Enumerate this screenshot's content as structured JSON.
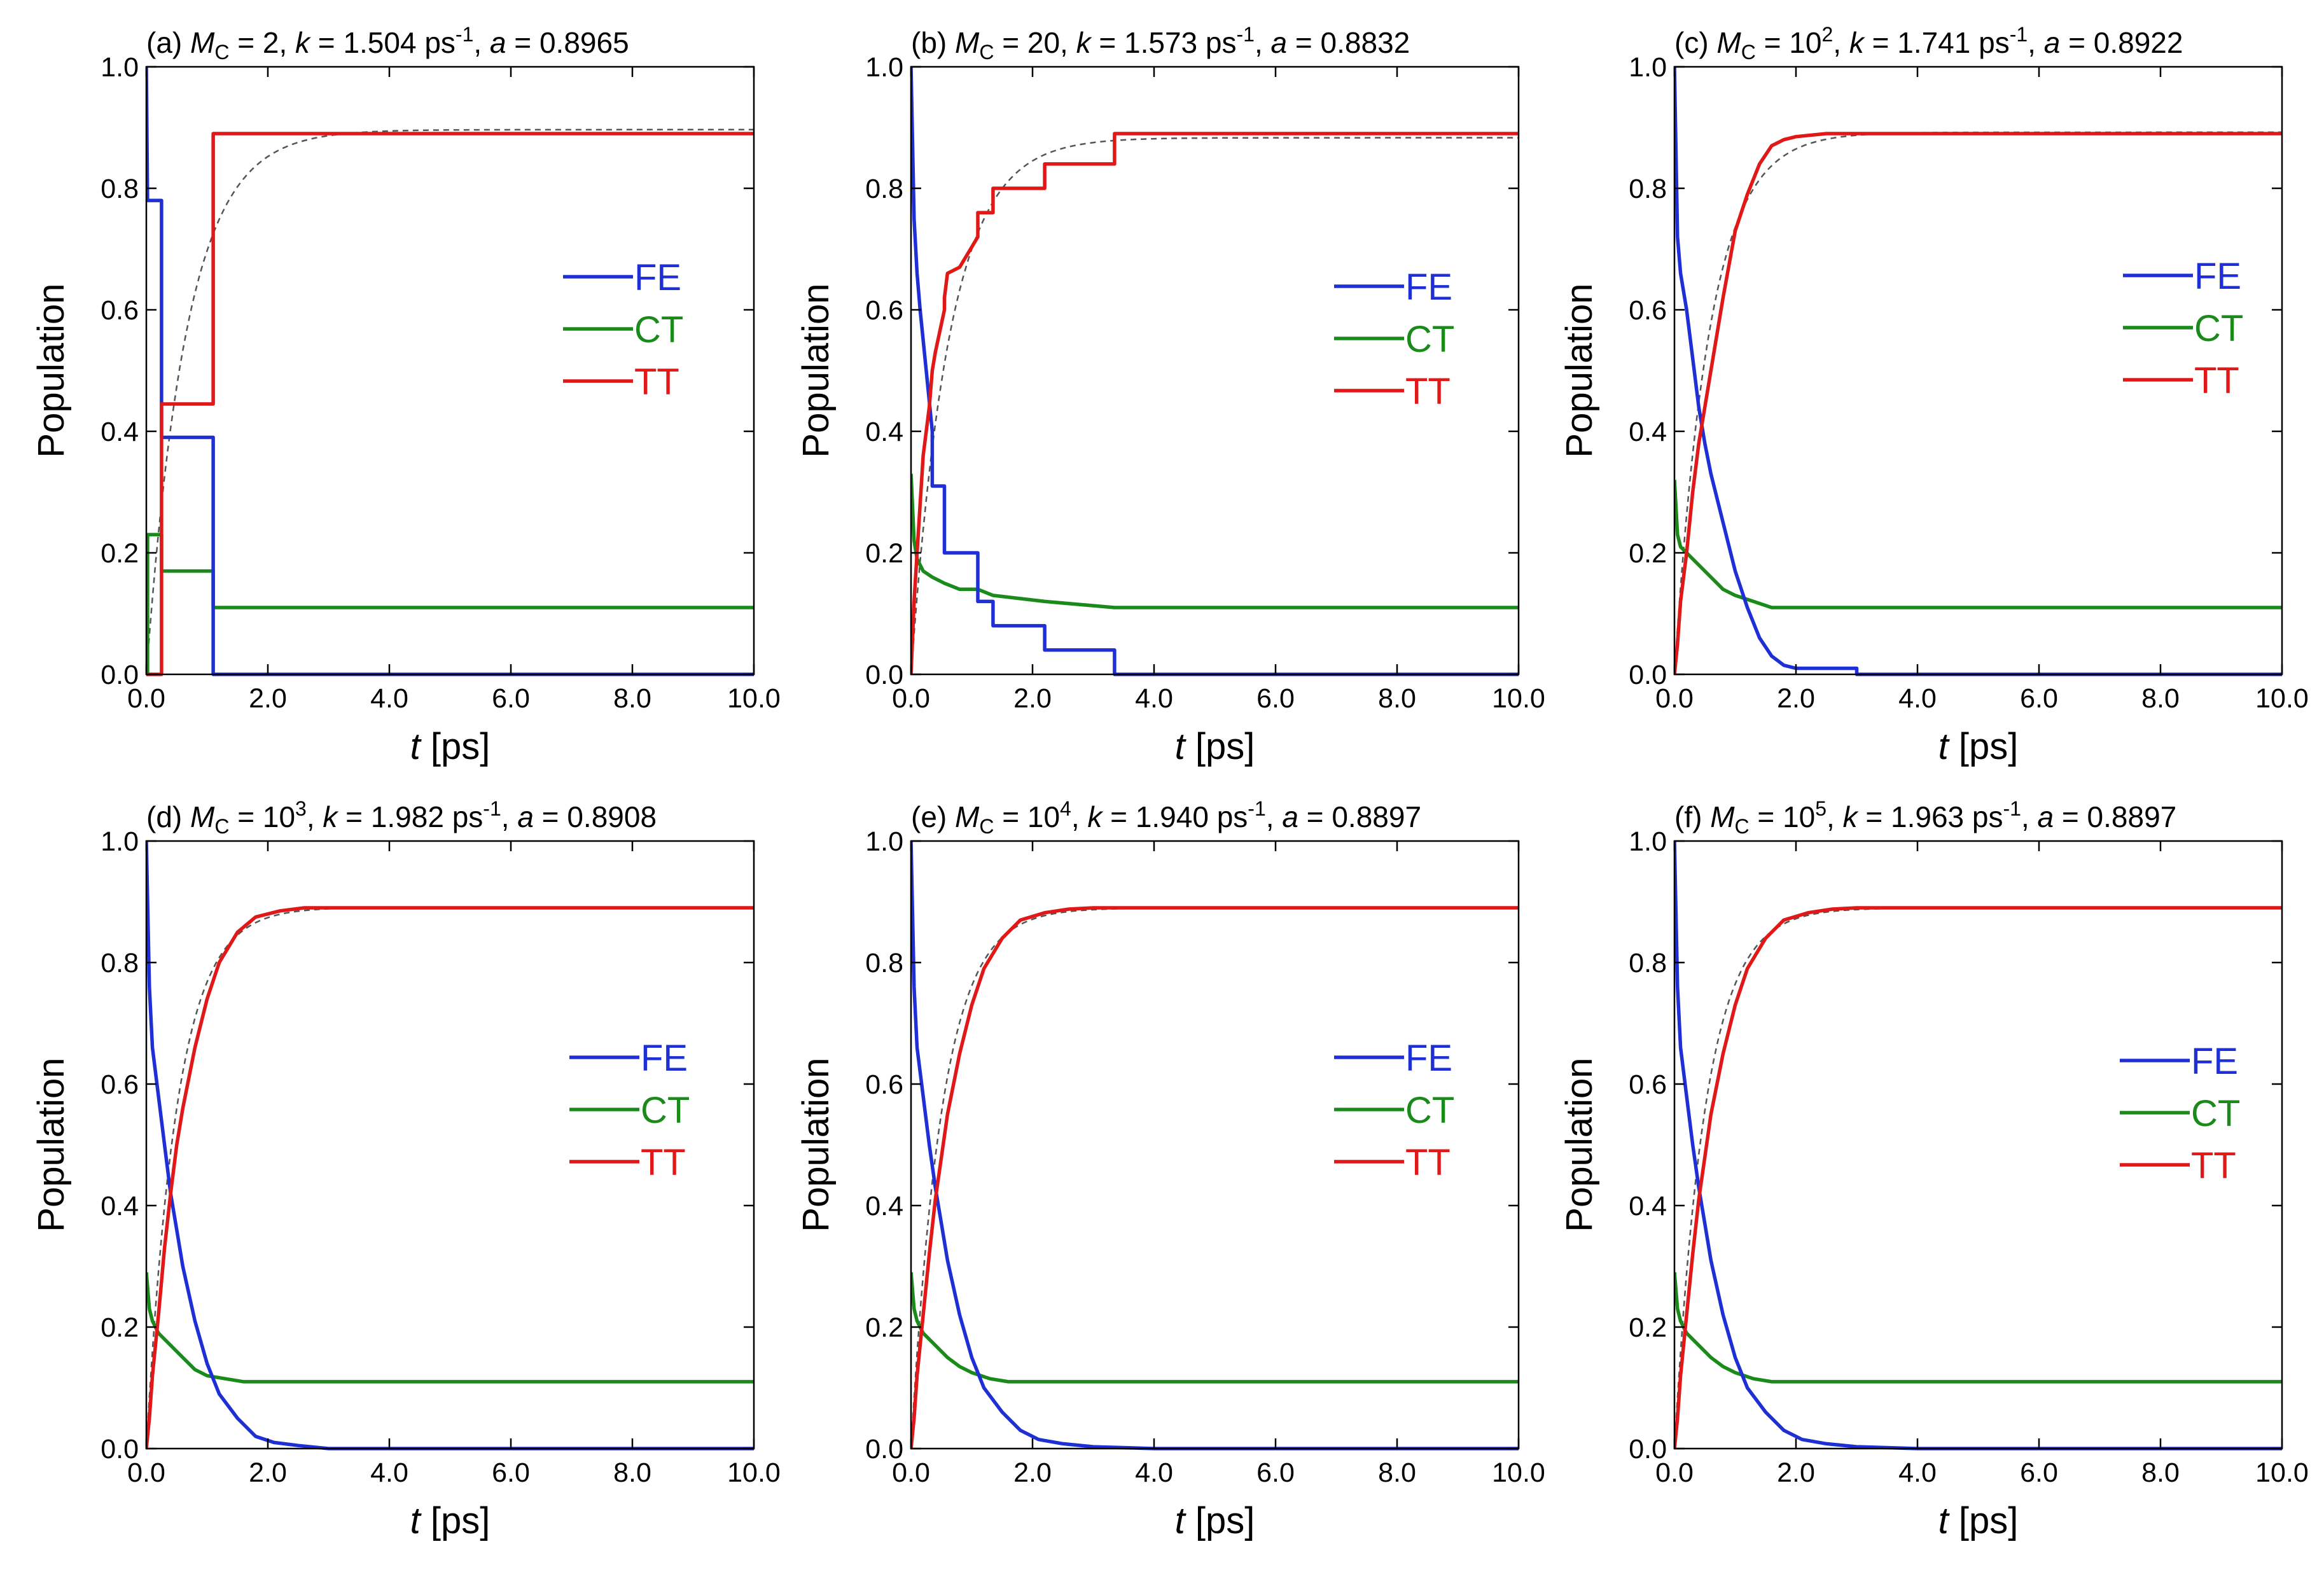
{
  "chart_data": [
    {
      "type": "line",
      "title": "(a) MC = 2, k = 1.504 ps-1,  a = 0.8965",
      "title_parts": {
        "tag": "(a)",
        "mc": "2",
        "mc_exp": "",
        "k": "1.504",
        "a": "0.8965"
      },
      "xlabel": {
        "var": "t",
        "unit": "[ps]"
      },
      "ylabel": "Population",
      "xlim": [
        0,
        10
      ],
      "ylim": [
        0,
        1
      ],
      "xticks": [
        "0.0",
        "2.0",
        "4.0",
        "6.0",
        "8.0",
        "10.0"
      ],
      "yticks": [
        "0.0",
        "0.2",
        "0.4",
        "0.6",
        "0.8",
        "1.0"
      ],
      "legend": [
        "FE",
        "CT",
        "TT"
      ],
      "fit": {
        "k": 1.504,
        "a": 0.8965
      },
      "series": [
        {
          "name": "FE",
          "color": "#1f2fd6",
          "x": [
            0,
            0.02,
            0.02,
            0.25,
            0.25,
            1.1,
            1.1,
            10
          ],
          "y": [
            1.0,
            0.78,
            0.78,
            0.78,
            0.39,
            0.39,
            0.0,
            0.0
          ]
        },
        {
          "name": "CT",
          "color": "#1a8a1a",
          "x": [
            0,
            0.02,
            0.02,
            0.25,
            0.25,
            1.1,
            1.1,
            10
          ],
          "y": [
            0.0,
            0.0,
            0.23,
            0.23,
            0.17,
            0.17,
            0.11,
            0.11
          ]
        },
        {
          "name": "TT",
          "color": "#e01818",
          "x": [
            0,
            0.25,
            0.25,
            1.1,
            1.1,
            10
          ],
          "y": [
            0.0,
            0.0,
            0.445,
            0.445,
            0.89,
            0.89
          ]
        }
      ]
    },
    {
      "type": "line",
      "title": "(b) MC = 20, k = 1.573 ps-1,  a = 0.8832",
      "title_parts": {
        "tag": "(b)",
        "mc": "20",
        "mc_exp": "",
        "k": "1.573",
        "a": "0.8832"
      },
      "xlabel": {
        "var": "t",
        "unit": "[ps]"
      },
      "ylabel": "Population",
      "xlim": [
        0,
        10
      ],
      "ylim": [
        0,
        1
      ],
      "xticks": [
        "0.0",
        "2.0",
        "4.0",
        "6.0",
        "8.0",
        "10.0"
      ],
      "yticks": [
        "0.0",
        "0.2",
        "0.4",
        "0.6",
        "0.8",
        "1.0"
      ],
      "legend": [
        "FE",
        "CT",
        "TT"
      ],
      "fit": {
        "k": 1.573,
        "a": 0.8832
      },
      "series": [
        {
          "name": "FE",
          "color": "#1f2fd6",
          "x": [
            0,
            0.05,
            0.1,
            0.15,
            0.2,
            0.25,
            0.35,
            0.35,
            0.55,
            0.55,
            1.1,
            1.1,
            1.35,
            1.35,
            2.2,
            2.2,
            3.35,
            3.35,
            10
          ],
          "y": [
            1.0,
            0.75,
            0.66,
            0.6,
            0.55,
            0.5,
            0.4,
            0.31,
            0.31,
            0.2,
            0.2,
            0.12,
            0.12,
            0.08,
            0.08,
            0.04,
            0.04,
            0.0,
            0.0
          ]
        },
        {
          "name": "CT",
          "color": "#1a8a1a",
          "x": [
            0,
            0.05,
            0.1,
            0.2,
            0.35,
            0.55,
            0.8,
            1.1,
            1.35,
            2.2,
            3.35,
            10
          ],
          "y": [
            0.33,
            0.22,
            0.19,
            0.17,
            0.16,
            0.15,
            0.14,
            0.14,
            0.13,
            0.12,
            0.11,
            0.11
          ]
        },
        {
          "name": "TT",
          "color": "#e01818",
          "x": [
            0,
            0.05,
            0.1,
            0.15,
            0.2,
            0.3,
            0.35,
            0.4,
            0.55,
            0.55,
            0.6,
            0.8,
            1.1,
            1.1,
            1.35,
            1.35,
            2.2,
            2.2,
            3.35,
            3.35,
            10
          ],
          "y": [
            0.0,
            0.12,
            0.2,
            0.28,
            0.36,
            0.44,
            0.5,
            0.53,
            0.6,
            0.62,
            0.66,
            0.67,
            0.72,
            0.76,
            0.76,
            0.8,
            0.8,
            0.84,
            0.84,
            0.89,
            0.89
          ]
        }
      ]
    },
    {
      "type": "line",
      "title": "(c) MC = 10^2, k = 1.741 ps-1,  a = 0.8922",
      "title_parts": {
        "tag": "(c)",
        "mc": "10",
        "mc_exp": "2",
        "k": "1.741",
        "a": "0.8922"
      },
      "xlabel": {
        "var": "t",
        "unit": "[ps]"
      },
      "ylabel": "Population",
      "xlim": [
        0,
        10
      ],
      "ylim": [
        0,
        1
      ],
      "xticks": [
        "0.0",
        "2.0",
        "4.0",
        "6.0",
        "8.0",
        "10.0"
      ],
      "yticks": [
        "0.0",
        "0.2",
        "0.4",
        "0.6",
        "0.8",
        "1.0"
      ],
      "legend": [
        "FE",
        "CT",
        "TT"
      ],
      "fit": {
        "k": 1.741,
        "a": 0.8922
      },
      "series": [
        {
          "name": "FE",
          "color": "#1f2fd6",
          "x": [
            0,
            0.05,
            0.1,
            0.2,
            0.3,
            0.4,
            0.5,
            0.6,
            0.8,
            1.0,
            1.2,
            1.4,
            1.6,
            1.8,
            2.0,
            2.5,
            3.0,
            3.0,
            10
          ],
          "y": [
            1.0,
            0.72,
            0.66,
            0.6,
            0.52,
            0.44,
            0.38,
            0.33,
            0.25,
            0.17,
            0.11,
            0.06,
            0.03,
            0.015,
            0.01,
            0.01,
            0.01,
            0.0,
            0.0
          ]
        },
        {
          "name": "CT",
          "color": "#1a8a1a",
          "x": [
            0,
            0.05,
            0.1,
            0.2,
            0.4,
            0.6,
            0.8,
            1.0,
            1.3,
            1.6,
            2.0,
            3.0,
            10
          ],
          "y": [
            0.32,
            0.23,
            0.21,
            0.2,
            0.18,
            0.16,
            0.14,
            0.13,
            0.12,
            0.11,
            0.11,
            0.11,
            0.11
          ]
        },
        {
          "name": "TT",
          "color": "#e01818",
          "x": [
            0,
            0.05,
            0.1,
            0.2,
            0.3,
            0.4,
            0.5,
            0.6,
            0.8,
            1.0,
            1.2,
            1.4,
            1.6,
            1.8,
            2.0,
            2.5,
            3.0,
            10
          ],
          "y": [
            0.0,
            0.05,
            0.12,
            0.2,
            0.3,
            0.38,
            0.44,
            0.5,
            0.62,
            0.73,
            0.79,
            0.84,
            0.87,
            0.88,
            0.885,
            0.89,
            0.89,
            0.89
          ]
        }
      ]
    },
    {
      "type": "line",
      "title": "(d) MC = 10^3, k = 1.982 ps-1,  a = 0.8908",
      "title_parts": {
        "tag": "(d)",
        "mc": "10",
        "mc_exp": "3",
        "k": "1.982",
        "a": "0.8908"
      },
      "xlabel": {
        "var": "t",
        "unit": "[ps]"
      },
      "ylabel": "Population",
      "xlim": [
        0,
        10
      ],
      "ylim": [
        0,
        1
      ],
      "xticks": [
        "0.0",
        "2.0",
        "4.0",
        "6.0",
        "8.0",
        "10.0"
      ],
      "yticks": [
        "0.0",
        "0.2",
        "0.4",
        "0.6",
        "0.8",
        "1.0"
      ],
      "legend": [
        "FE",
        "CT",
        "TT"
      ],
      "fit": {
        "k": 1.982,
        "a": 0.8908
      },
      "series": [
        {
          "name": "FE",
          "color": "#1f2fd6",
          "x": [
            0,
            0.05,
            0.1,
            0.2,
            0.3,
            0.4,
            0.5,
            0.6,
            0.8,
            1.0,
            1.2,
            1.5,
            1.8,
            2.1,
            2.5,
            3.0,
            4.0,
            10
          ],
          "y": [
            1.0,
            0.76,
            0.66,
            0.58,
            0.5,
            0.42,
            0.36,
            0.3,
            0.21,
            0.14,
            0.09,
            0.05,
            0.02,
            0.01,
            0.005,
            0.0,
            0.0,
            0.0
          ]
        },
        {
          "name": "CT",
          "color": "#1a8a1a",
          "x": [
            0,
            0.05,
            0.1,
            0.2,
            0.4,
            0.6,
            0.8,
            1.0,
            1.3,
            1.6,
            2.0,
            3.0,
            10
          ],
          "y": [
            0.29,
            0.23,
            0.21,
            0.19,
            0.17,
            0.15,
            0.13,
            0.12,
            0.115,
            0.11,
            0.11,
            0.11,
            0.11
          ]
        },
        {
          "name": "TT",
          "color": "#e01818",
          "x": [
            0,
            0.05,
            0.1,
            0.2,
            0.3,
            0.4,
            0.5,
            0.6,
            0.8,
            1.0,
            1.2,
            1.5,
            1.8,
            2.2,
            2.6,
            3.0,
            4.0,
            10
          ],
          "y": [
            0.0,
            0.05,
            0.12,
            0.22,
            0.33,
            0.42,
            0.5,
            0.56,
            0.66,
            0.74,
            0.8,
            0.85,
            0.875,
            0.885,
            0.89,
            0.89,
            0.89,
            0.89
          ]
        }
      ]
    },
    {
      "type": "line",
      "title": "(e) MC = 10^4, k = 1.940 ps-1, a = 0.8897",
      "title_parts": {
        "tag": "(e)",
        "mc": "10",
        "mc_exp": "4",
        "k": "1.940",
        "a": "0.8897"
      },
      "xlabel": {
        "var": "t",
        "unit": "[ps]"
      },
      "ylabel": "Population",
      "xlim": [
        0,
        10
      ],
      "ylim": [
        0,
        1
      ],
      "xticks": [
        "0.0",
        "2.0",
        "4.0",
        "6.0",
        "8.0",
        "10.0"
      ],
      "yticks": [
        "0.0",
        "0.2",
        "0.4",
        "0.6",
        "0.8",
        "1.0"
      ],
      "legend": [
        "FE",
        "CT",
        "TT"
      ],
      "fit": {
        "k": 1.94,
        "a": 0.8897
      },
      "series": [
        {
          "name": "FE",
          "color": "#1f2fd6",
          "x": [
            0,
            0.05,
            0.1,
            0.2,
            0.3,
            0.4,
            0.5,
            0.6,
            0.8,
            1.0,
            1.2,
            1.5,
            1.8,
            2.1,
            2.5,
            3.0,
            4.0,
            10
          ],
          "y": [
            1.0,
            0.76,
            0.66,
            0.58,
            0.5,
            0.43,
            0.37,
            0.31,
            0.22,
            0.15,
            0.1,
            0.06,
            0.03,
            0.015,
            0.008,
            0.003,
            0.0,
            0.0
          ]
        },
        {
          "name": "CT",
          "color": "#1a8a1a",
          "x": [
            0,
            0.05,
            0.1,
            0.2,
            0.4,
            0.6,
            0.8,
            1.0,
            1.3,
            1.6,
            2.0,
            3.0,
            10
          ],
          "y": [
            0.29,
            0.23,
            0.21,
            0.19,
            0.17,
            0.15,
            0.135,
            0.125,
            0.115,
            0.11,
            0.11,
            0.11,
            0.11
          ]
        },
        {
          "name": "TT",
          "color": "#e01818",
          "x": [
            0,
            0.05,
            0.1,
            0.2,
            0.3,
            0.4,
            0.5,
            0.6,
            0.8,
            1.0,
            1.2,
            1.5,
            1.8,
            2.2,
            2.6,
            3.0,
            4.0,
            10
          ],
          "y": [
            0.0,
            0.05,
            0.12,
            0.22,
            0.32,
            0.41,
            0.48,
            0.55,
            0.65,
            0.73,
            0.79,
            0.84,
            0.87,
            0.882,
            0.888,
            0.89,
            0.89,
            0.89
          ]
        }
      ]
    },
    {
      "type": "line",
      "title": "(f) MC = 10^5, k = 1.963 ps-1, a = 0.8897",
      "title_parts": {
        "tag": "(f)",
        "mc": "10",
        "mc_exp": "5",
        "k": "1.963",
        "a": "0.8897"
      },
      "xlabel": {
        "var": "t",
        "unit": "[ps]"
      },
      "ylabel": "Population",
      "xlim": [
        0,
        10
      ],
      "ylim": [
        0,
        1
      ],
      "xticks": [
        "0.0",
        "2.0",
        "4.0",
        "6.0",
        "8.0",
        "10.0"
      ],
      "yticks": [
        "0.0",
        "0.2",
        "0.4",
        "0.6",
        "0.8",
        "1.0"
      ],
      "legend": [
        "FE",
        "CT",
        "TT"
      ],
      "fit": {
        "k": 1.963,
        "a": 0.8897
      },
      "series": [
        {
          "name": "FE",
          "color": "#1f2fd6",
          "x": [
            0,
            0.05,
            0.1,
            0.2,
            0.3,
            0.4,
            0.5,
            0.6,
            0.8,
            1.0,
            1.2,
            1.5,
            1.8,
            2.1,
            2.5,
            3.0,
            4.0,
            10
          ],
          "y": [
            1.0,
            0.76,
            0.66,
            0.58,
            0.5,
            0.43,
            0.37,
            0.31,
            0.22,
            0.15,
            0.1,
            0.06,
            0.03,
            0.015,
            0.008,
            0.003,
            0.0,
            0.0
          ]
        },
        {
          "name": "CT",
          "color": "#1a8a1a",
          "x": [
            0,
            0.05,
            0.1,
            0.2,
            0.4,
            0.6,
            0.8,
            1.0,
            1.3,
            1.6,
            2.0,
            3.0,
            10
          ],
          "y": [
            0.29,
            0.23,
            0.21,
            0.19,
            0.17,
            0.15,
            0.135,
            0.125,
            0.115,
            0.11,
            0.11,
            0.11,
            0.11
          ]
        },
        {
          "name": "TT",
          "color": "#e01818",
          "x": [
            0,
            0.05,
            0.1,
            0.2,
            0.3,
            0.4,
            0.5,
            0.6,
            0.8,
            1.0,
            1.2,
            1.5,
            1.8,
            2.2,
            2.6,
            3.0,
            4.0,
            10
          ],
          "y": [
            0.0,
            0.05,
            0.12,
            0.22,
            0.32,
            0.41,
            0.48,
            0.55,
            0.65,
            0.73,
            0.79,
            0.84,
            0.87,
            0.882,
            0.888,
            0.89,
            0.89,
            0.89
          ]
        }
      ]
    }
  ]
}
